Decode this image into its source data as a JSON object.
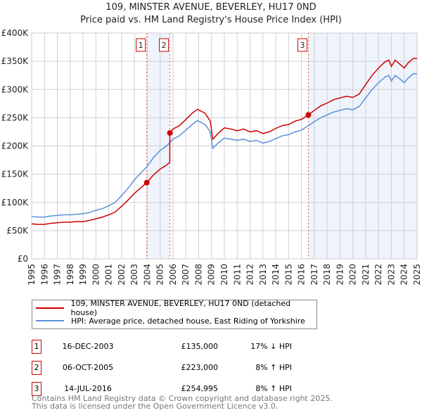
{
  "chart_data": {
    "type": "line",
    "title": "109, MINSTER AVENUE, BEVERLEY, HU17 0ND",
    "subtitle": "Price paid vs. HM Land Registry's House Price Index (HPI)",
    "xlim": [
      1995,
      2025
    ],
    "ylim": [
      0,
      400000
    ],
    "x_ticks": [
      "1995",
      "1996",
      "1997",
      "1998",
      "1999",
      "2000",
      "2001",
      "2002",
      "2003",
      "2004",
      "2005",
      "2006",
      "2007",
      "2008",
      "2009",
      "2010",
      "2011",
      "2012",
      "2013",
      "2014",
      "2015",
      "2016",
      "2017",
      "2018",
      "2019",
      "2020",
      "2021",
      "2022",
      "2023",
      "2024",
      "2025"
    ],
    "y_ticks": [
      "£0",
      "£50K",
      "£100K",
      "£150K",
      "£200K",
      "£250K",
      "£300K",
      "£350K",
      "£400K"
    ],
    "grid": true,
    "series": [
      {
        "name": "109, MINSTER AVENUE, BEVERLEY, HU17 0ND (detached house)",
        "color": "#cc0000",
        "x": [
          1995,
          1995.5,
          1996,
          1996.5,
          1997,
          1997.5,
          1998,
          1998.5,
          1999,
          1999.5,
          2000,
          2000.5,
          2001,
          2001.5,
          2002,
          2002.5,
          2003,
          2003.5,
          2003.96,
          2004.5,
          2005,
          2005.5,
          2005.75,
          2005.76,
          2006,
          2006.5,
          2007,
          2007.5,
          2007.9,
          2008.5,
          2008.9,
          2009.1,
          2009.5,
          2010,
          2010.5,
          2011,
          2011.5,
          2012,
          2012.5,
          2013,
          2013.5,
          2014,
          2014.5,
          2015,
          2015.5,
          2016,
          2016.54,
          2017,
          2017.5,
          2018,
          2018.5,
          2019,
          2019.5,
          2020,
          2020.5,
          2021,
          2021.5,
          2022,
          2022.5,
          2022.8,
          2023,
          2023.3,
          2023.7,
          2024,
          2024.3,
          2024.7,
          2025
        ],
        "y": [
          62,
          61,
          61,
          63,
          64,
          65,
          65,
          66,
          66,
          68,
          71,
          74,
          78,
          83,
          93,
          104,
          116,
          126,
          135,
          149,
          159,
          166,
          171,
          223,
          230,
          236,
          247,
          258,
          265,
          258,
          244,
          212,
          222,
          232,
          230,
          227,
          230,
          225,
          227,
          222,
          225,
          231,
          236,
          238,
          244,
          247,
          255,
          263,
          271,
          276,
          282,
          285,
          288,
          286,
          292,
          309,
          325,
          338,
          349,
          352,
          341,
          352,
          344,
          338,
          347,
          355,
          355
        ]
      },
      {
        "name": "HPI: Average price, detached house, East Riding of Yorkshire",
        "color": "#5b8fd6",
        "x": [
          1995,
          1995.5,
          1996,
          1996.5,
          1997,
          1997.5,
          1998,
          1998.5,
          1999,
          1999.5,
          2000,
          2000.5,
          2001,
          2001.5,
          2002,
          2002.5,
          2003,
          2003.5,
          2003.96,
          2004.5,
          2005,
          2005.5,
          2005.76,
          2006,
          2006.5,
          2007,
          2007.5,
          2007.9,
          2008.5,
          2008.9,
          2009.1,
          2009.5,
          2010,
          2010.5,
          2011,
          2011.5,
          2012,
          2012.5,
          2013,
          2013.5,
          2014,
          2014.5,
          2015,
          2015.5,
          2016,
          2016.54,
          2017,
          2017.5,
          2018,
          2018.5,
          2019,
          2019.5,
          2020,
          2020.5,
          2021,
          2021.5,
          2022,
          2022.5,
          2022.8,
          2023,
          2023.3,
          2023.7,
          2024,
          2024.3,
          2024.7,
          2025
        ],
        "y": [
          75,
          74,
          74,
          76,
          77,
          78,
          78,
          79,
          80,
          82,
          86,
          89,
          94,
          100,
          112,
          125,
          140,
          152,
          163,
          180,
          192,
          200,
          206,
          212,
          218,
          228,
          238,
          245,
          238,
          225,
          196,
          205,
          214,
          212,
          210,
          212,
          208,
          210,
          205,
          208,
          213,
          218,
          220,
          225,
          228,
          236,
          243,
          250,
          255,
          260,
          263,
          266,
          264,
          270,
          285,
          300,
          312,
          322,
          325,
          315,
          325,
          318,
          312,
          320,
          328,
          328
        ]
      }
    ],
    "y_unit": "thousand GBP",
    "sales": [
      {
        "label": "1",
        "x": 2003.96,
        "y": 135,
        "date": "16-DEC-2003",
        "price": "£135,000",
        "hpi": "17% ↓ HPI"
      },
      {
        "label": "2",
        "x": 2005.76,
        "y": 223,
        "date": "06-OCT-2005",
        "price": "£223,000",
        "hpi": "8% ↑ HPI"
      },
      {
        "label": "3",
        "x": 2016.54,
        "y": 255,
        "date": "14-JUL-2016",
        "price": "£254,995",
        "hpi": "8% ↑ HPI"
      }
    ],
    "shaded": [
      [
        2003.96,
        2005.76
      ],
      [
        2016.54,
        2025
      ]
    ]
  },
  "footer": {
    "line1": "Contains HM Land Registry data © Crown copyright and database right 2025.",
    "line2": "This data is licensed under the Open Government Licence v3.0."
  }
}
